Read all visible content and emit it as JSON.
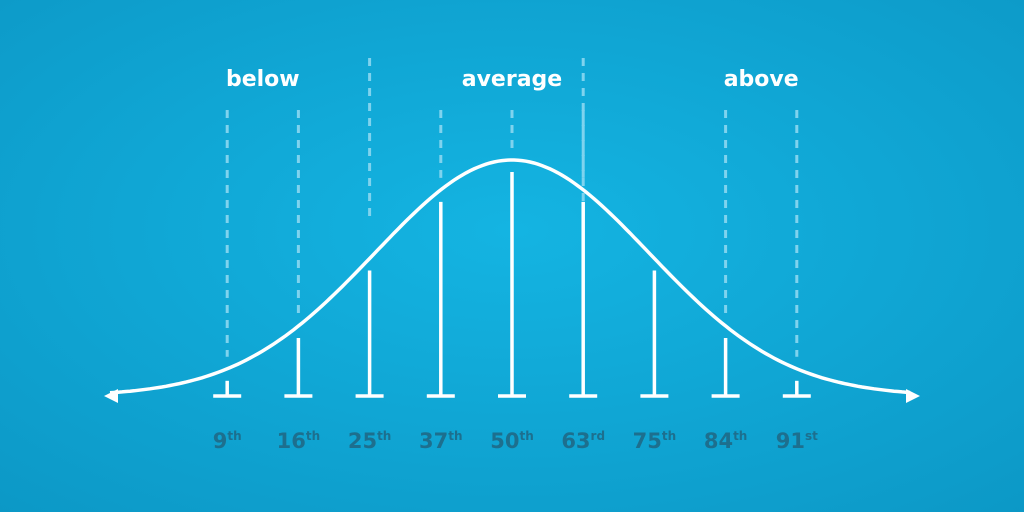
{
  "zones": [
    "below",
    "average",
    "above"
  ],
  "percentiles": [
    {
      "number": "9",
      "suffix": "th"
    },
    {
      "number": "16",
      "suffix": "th"
    },
    {
      "number": "25",
      "suffix": "th"
    },
    {
      "number": "37",
      "suffix": "th"
    },
    {
      "number": "50",
      "suffix": "th"
    },
    {
      "number": "63",
      "suffix": "rd"
    },
    {
      "number": "75",
      "suffix": "th"
    },
    {
      "number": "84",
      "suffix": "th"
    },
    {
      "number": "91",
      "suffix": "st"
    }
  ]
}
